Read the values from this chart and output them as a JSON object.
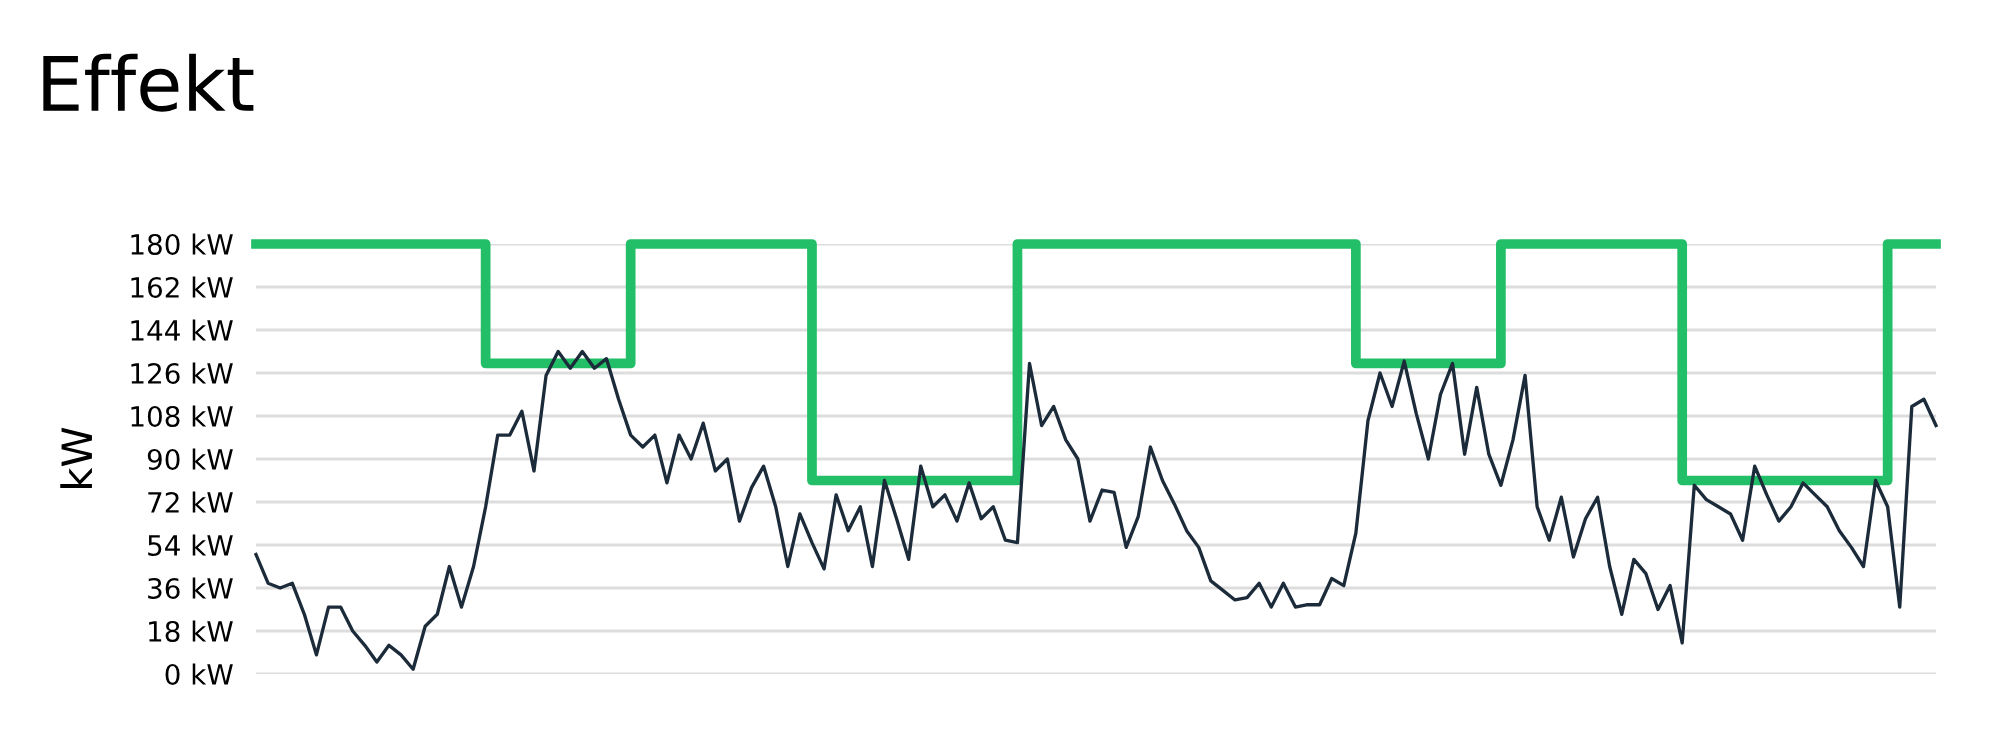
{
  "chart_data": {
    "type": "line",
    "title": "Effekt",
    "ylabel": "kW",
    "categories": [
      null,
      null,
      null,
      null,
      null,
      null,
      null,
      null,
      null,
      null,
      null,
      null,
      null,
      null,
      null,
      null,
      null,
      null,
      null,
      null,
      null,
      null,
      null,
      null,
      null,
      null,
      null,
      null,
      null,
      null,
      null,
      null,
      null,
      null,
      null,
      null,
      null,
      null,
      null,
      null,
      null,
      null,
      null,
      null,
      null,
      null,
      null,
      null,
      null,
      null,
      null,
      null,
      null,
      null,
      null,
      null,
      null,
      null,
      null,
      null,
      null,
      null,
      null,
      null,
      null,
      null,
      null,
      null,
      null,
      null,
      null,
      null,
      null,
      null,
      null,
      null,
      null,
      null,
      null,
      null,
      null,
      null,
      null,
      null,
      null,
      null,
      null,
      null,
      null,
      null,
      null,
      null,
      null,
      null,
      null,
      null,
      null,
      null,
      null,
      null,
      null,
      null,
      null,
      null,
      null,
      null,
      null,
      null,
      null,
      null,
      null,
      null,
      null,
      null,
      null,
      null,
      null,
      null,
      null,
      null,
      null,
      null,
      null,
      null,
      null,
      null,
      null,
      null,
      null,
      null,
      null,
      null,
      null,
      null,
      null,
      null,
      null,
      null,
      null,
      null
    ],
    "series": [
      {
        "type": "step",
        "color": "#22bf68",
        "values": [
          180,
          180,
          180,
          180,
          180,
          180,
          180,
          180,
          180,
          180,
          180,
          180,
          180,
          180,
          180,
          180,
          180,
          180,
          180,
          130,
          130,
          130,
          130,
          130,
          130,
          130,
          130,
          130,
          130,
          130,
          130,
          180,
          180,
          180,
          180,
          180,
          180,
          180,
          180,
          180,
          180,
          180,
          180,
          180,
          180,
          180,
          81,
          81,
          81,
          81,
          81,
          81,
          81,
          81,
          81,
          81,
          81,
          81,
          81,
          81,
          81,
          81,
          81,
          180,
          180,
          180,
          180,
          180,
          180,
          180,
          180,
          180,
          180,
          180,
          180,
          180,
          180,
          180,
          180,
          180,
          180,
          180,
          180,
          180,
          180,
          180,
          180,
          180,
          180,
          180,
          180,
          130,
          130,
          130,
          130,
          130,
          130,
          130,
          130,
          130,
          130,
          130,
          130,
          180,
          180,
          180,
          180,
          180,
          180,
          180,
          180,
          180,
          180,
          180,
          180,
          180,
          180,
          180,
          81,
          81,
          81,
          81,
          81,
          81,
          81,
          81,
          81,
          81,
          81,
          81,
          81,
          81,
          81,
          81,
          81,
          180,
          180,
          180,
          180,
          180
        ]
      },
      {
        "color": "#1c2b3a",
        "values": [
          50,
          38,
          36,
          38,
          25,
          8,
          28,
          28,
          18,
          12,
          5,
          12,
          8,
          2,
          20,
          25,
          45,
          28,
          45,
          70,
          100,
          100,
          110,
          85,
          125,
          135,
          128,
          135,
          128,
          132,
          115,
          100,
          95,
          100,
          80,
          100,
          90,
          105,
          85,
          90,
          64,
          78,
          87,
          70,
          45,
          67,
          55,
          44,
          75,
          60,
          70,
          45,
          81,
          65,
          48,
          87,
          70,
          75,
          64,
          80,
          65,
          70,
          56,
          55,
          130,
          104,
          112,
          98,
          90,
          64,
          77,
          76,
          53,
          66,
          95,
          81,
          71,
          60,
          53,
          39,
          35,
          31,
          32,
          38,
          28,
          38,
          28,
          29,
          29,
          40,
          37,
          59,
          106,
          126,
          112,
          131,
          109,
          90,
          117,
          130,
          92,
          120,
          92,
          79,
          98,
          125,
          70,
          56,
          74,
          49,
          65,
          74,
          45,
          25,
          48,
          42,
          27,
          37,
          13,
          79,
          73,
          70,
          67,
          56,
          87,
          75,
          64,
          70,
          80,
          75,
          70,
          60,
          53,
          45,
          81,
          70,
          28,
          112,
          115,
          104
        ]
      }
    ],
    "ylim": [
      0,
      180
    ],
    "yticks": [
      {
        "value": 0,
        "label": "0 kW"
      },
      {
        "value": 18,
        "label": "18 kW"
      },
      {
        "value": 36,
        "label": "36 kW"
      },
      {
        "value": 54,
        "label": "54 kW"
      },
      {
        "value": 72,
        "label": "72 kW"
      },
      {
        "value": 90,
        "label": "90 kW"
      },
      {
        "value": 108,
        "label": "108 kW"
      },
      {
        "value": 126,
        "label": "126 kW"
      },
      {
        "value": 144,
        "label": "144 kW"
      },
      {
        "value": 162,
        "label": "162 kW"
      },
      {
        "value": 180,
        "label": "180 kW"
      }
    ],
    "grid": "y",
    "tick_labels": "y"
  }
}
